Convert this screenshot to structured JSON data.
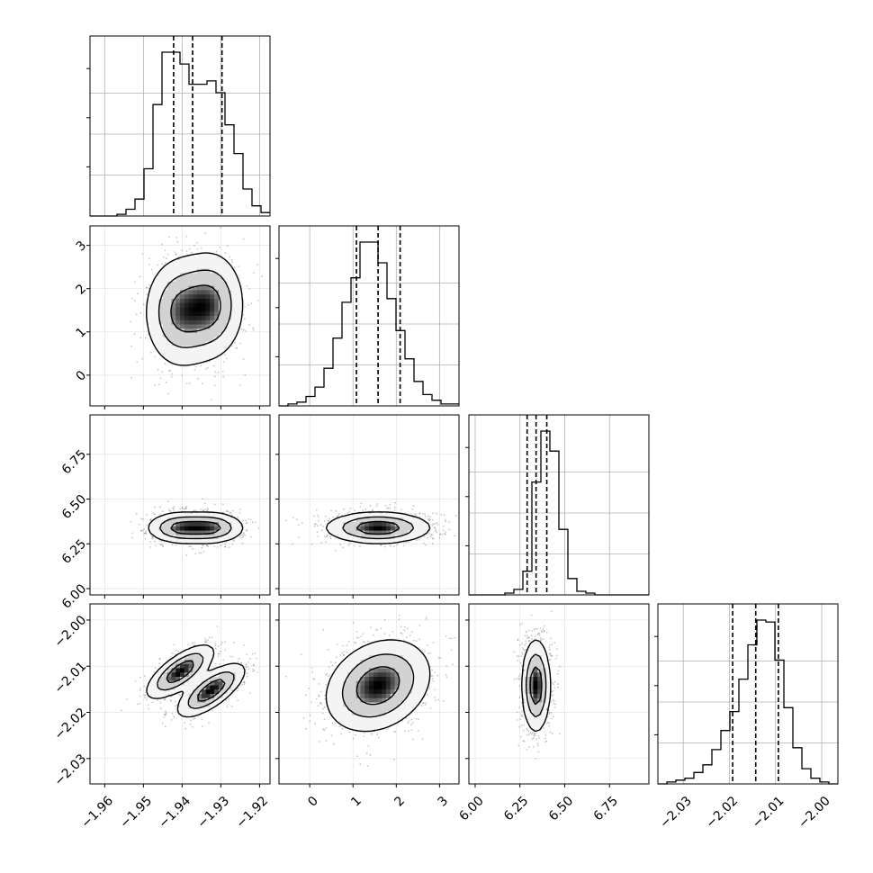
{
  "chart_data": {
    "type": "corner",
    "params": [
      {
        "ticks": [
          "−1.96",
          "−1.95",
          "−1.94",
          "−1.93",
          "−1.92"
        ],
        "tick_values": [
          -1.96,
          -1.95,
          -1.94,
          -1.93,
          -1.92
        ],
        "range": [
          -1.9638,
          -1.9173
        ],
        "quantiles": [
          -1.9422,
          -1.9373,
          -1.9297
        ]
      },
      {
        "ticks": [
          "0",
          "1",
          "2",
          "3"
        ],
        "tick_values": [
          0,
          1,
          2,
          3
        ],
        "range": [
          -0.71,
          3.45
        ],
        "quantiles": [
          1.08,
          1.58,
          2.09
        ]
      },
      {
        "ticks": [
          "6.00",
          "6.25",
          "6.50",
          "6.75"
        ],
        "tick_values": [
          6.0,
          6.25,
          6.5,
          6.75
        ],
        "range": [
          5.965,
          6.97
        ],
        "quantiles": [
          6.29,
          6.34,
          6.4
        ]
      },
      {
        "ticks": [
          "−2.03",
          "−2.02",
          "−2.01",
          "−2.00"
        ],
        "tick_values": [
          -2.03,
          -2.02,
          -2.01,
          -2.0
        ],
        "range": [
          -2.0355,
          -1.9965
        ],
        "quantiles": [
          -2.0193,
          -2.0143,
          -2.0094
        ]
      }
    ],
    "histograms": [
      {
        "counts": [
          0,
          0,
          0,
          1,
          4,
          10,
          28,
          66,
          97,
          97,
          90,
          78,
          78,
          80,
          73,
          54,
          37,
          16,
          6,
          2
        ]
      },
      {
        "counts": [
          0,
          1,
          2,
          5,
          10,
          20,
          36,
          55,
          68,
          87,
          87,
          76,
          57,
          40,
          25,
          13,
          6,
          3,
          1,
          1
        ]
      },
      {
        "counts": [
          0,
          0,
          0,
          0,
          1,
          3,
          13,
          62,
          90,
          79,
          36,
          9,
          2,
          1,
          0,
          0,
          0,
          0,
          0,
          0
        ]
      },
      {
        "counts": [
          0,
          1,
          2,
          3,
          6,
          10,
          18,
          28,
          38,
          55,
          73,
          86,
          85,
          65,
          40,
          19,
          8,
          3,
          1,
          0
        ]
      }
    ],
    "pairs": [
      {
        "row": 1,
        "col": 0,
        "modes": [
          [
            -1.9405,
            1.45,
            0.0045,
            0.62,
            0.0
          ],
          [
            -1.9325,
            1.62,
            0.0042,
            0.6,
            0.0
          ]
        ]
      },
      {
        "row": 2,
        "col": 0,
        "modes": [
          [
            -1.9405,
            6.34,
            0.0042,
            0.042,
            0.0
          ],
          [
            -1.9325,
            6.34,
            0.0042,
            0.042,
            0.0
          ]
        ]
      },
      {
        "row": 2,
        "col": 1,
        "modes": [
          [
            1.58,
            6.34,
            0.58,
            0.042,
            0.0
          ]
        ]
      },
      {
        "row": 3,
        "col": 0,
        "modes": [
          [
            -1.9405,
            -2.0112,
            0.0042,
            0.0028,
            0.72
          ],
          [
            -1.9325,
            -2.0152,
            0.0042,
            0.0028,
            0.72
          ]
        ]
      },
      {
        "row": 3,
        "col": 1,
        "modes": [
          [
            1.58,
            -2.0142,
            0.58,
            0.0048,
            0.25
          ]
        ]
      },
      {
        "row": 3,
        "col": 2,
        "modes": [
          [
            6.34,
            -2.0142,
            0.038,
            0.0048,
            0.0
          ]
        ]
      }
    ],
    "contour_levels": [
      0.12,
      0.37,
      0.7
    ],
    "grid": true,
    "title": "",
    "xlabel": "",
    "ylabel": ""
  }
}
